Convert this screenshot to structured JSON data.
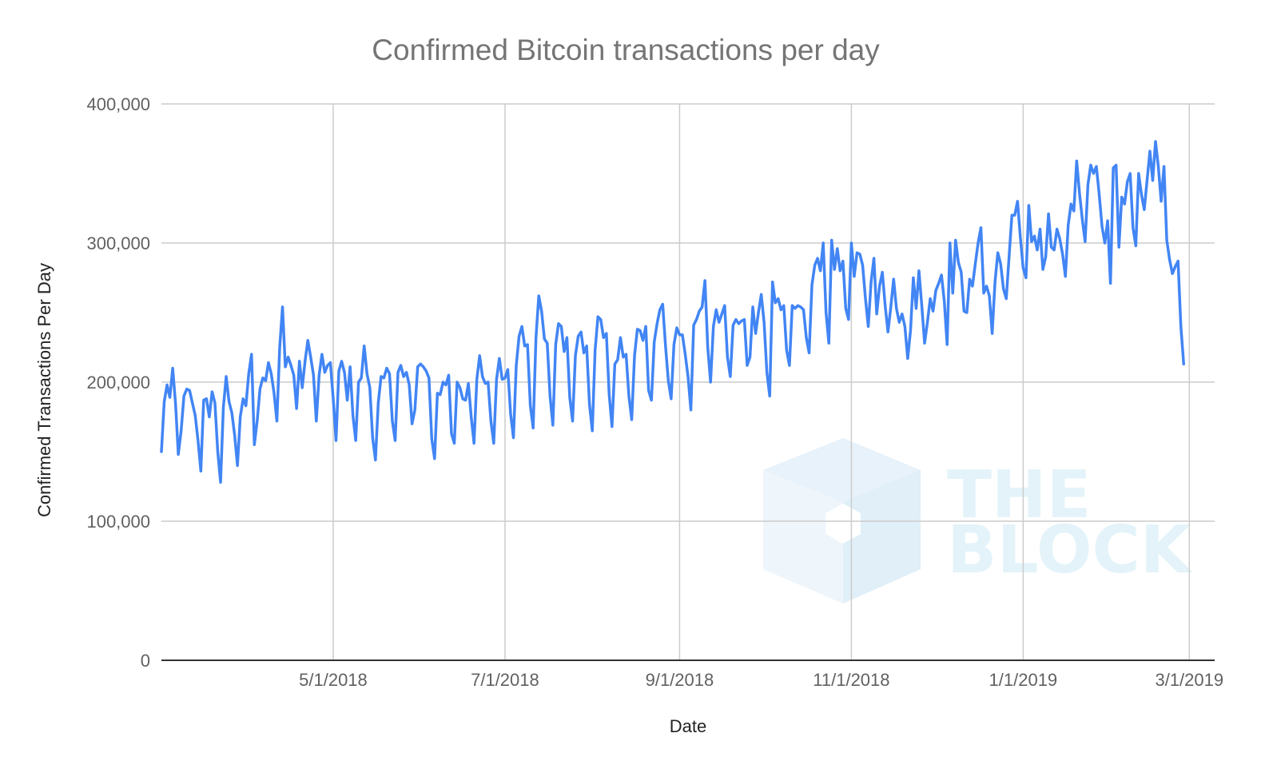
{
  "chart_data": {
    "type": "line",
    "title": "Confirmed Bitcoin transactions per day",
    "xlabel": "Date",
    "ylabel": "Confirmed Transactions Per Day",
    "x_start": "2018-03-01",
    "x_end": "2019-03-10",
    "ylim": [
      0,
      400000
    ],
    "y_ticks": [
      0,
      100000,
      200000,
      300000,
      400000
    ],
    "y_tick_labels": [
      "0",
      "100,000",
      "200,000",
      "300,000",
      "400,000"
    ],
    "x_ticks": [
      "2018-05-01",
      "2018-07-01",
      "2018-09-01",
      "2018-11-01",
      "2019-01-01",
      "2019-03-01"
    ],
    "x_tick_labels": [
      "5/1/2018",
      "7/1/2018",
      "9/1/2018",
      "11/1/2018",
      "1/1/2019",
      "3/1/2019"
    ],
    "grid": true,
    "series": [
      {
        "color": "#4285f4",
        "values": [
          150000,
          186000,
          198000,
          189000,
          210000,
          185000,
          148000,
          165000,
          190000,
          195000,
          194000,
          185000,
          176000,
          158000,
          136000,
          187000,
          188000,
          175000,
          193000,
          185000,
          150000,
          128000,
          182000,
          204000,
          186000,
          178000,
          162000,
          140000,
          175000,
          188000,
          183000,
          206000,
          220000,
          155000,
          172000,
          195000,
          203000,
          201000,
          214000,
          206000,
          192000,
          172000,
          225000,
          254000,
          211000,
          218000,
          212000,
          205000,
          181000,
          215000,
          196000,
          215000,
          230000,
          218000,
          205000,
          172000,
          205000,
          220000,
          207000,
          212000,
          214000,
          188000,
          158000,
          208000,
          215000,
          207000,
          187000,
          211000,
          176000,
          158000,
          200000,
          203000,
          226000,
          206000,
          196000,
          160000,
          144000,
          185000,
          204000,
          203000,
          210000,
          206000,
          172000,
          158000,
          207000,
          212000,
          204000,
          207000,
          198000,
          170000,
          180000,
          211000,
          213000,
          211000,
          208000,
          203000,
          159000,
          145000,
          192000,
          191000,
          200000,
          198000,
          205000,
          163000,
          156000,
          200000,
          196000,
          188000,
          187000,
          199000,
          175000,
          156000,
          202000,
          219000,
          204000,
          199000,
          200000,
          172000,
          156000,
          202000,
          217000,
          202000,
          203000,
          209000,
          177000,
          160000,
          212000,
          233000,
          240000,
          226000,
          227000,
          183000,
          167000,
          232000,
          262000,
          251000,
          231000,
          228000,
          190000,
          169000,
          227000,
          242000,
          240000,
          222000,
          232000,
          189000,
          172000,
          219000,
          233000,
          236000,
          221000,
          226000,
          184000,
          165000,
          223000,
          247000,
          245000,
          232000,
          235000,
          191000,
          168000,
          213000,
          216000,
          232000,
          218000,
          220000,
          190000,
          173000,
          219000,
          238000,
          237000,
          230000,
          240000,
          194000,
          187000,
          229000,
          242000,
          252000,
          256000,
          226000,
          201000,
          188000,
          227000,
          239000,
          234000,
          234000,
          220000,
          204000,
          180000,
          241000,
          245000,
          251000,
          254000,
          273000,
          225000,
          200000,
          240000,
          252000,
          243000,
          249000,
          255000,
          218000,
          204000,
          241000,
          245000,
          242000,
          244000,
          245000,
          212000,
          218000,
          254000,
          235000,
          250000,
          263000,
          243000,
          207000,
          190000,
          272000,
          257000,
          260000,
          252000,
          255000,
          223000,
          212000,
          255000,
          253000,
          255000,
          254000,
          252000,
          232000,
          221000,
          270000,
          284000,
          289000,
          280000,
          300000,
          250000,
          228000,
          302000,
          281000,
          296000,
          280000,
          287000,
          253000,
          245000,
          300000,
          276000,
          293000,
          292000,
          284000,
          260000,
          240000,
          272000,
          289000,
          249000,
          269000,
          279000,
          255000,
          236000,
          254000,
          274000,
          253000,
          243000,
          249000,
          240000,
          217000,
          237000,
          275000,
          253000,
          280000,
          255000,
          228000,
          243000,
          260000,
          251000,
          266000,
          271000,
          277000,
          258000,
          227000,
          300000,
          264000,
          302000,
          286000,
          279000,
          251000,
          250000,
          274000,
          269000,
          285000,
          300000,
          311000,
          264000,
          269000,
          262000,
          235000,
          272000,
          293000,
          285000,
          267000,
          260000,
          290000,
          320000,
          320000,
          330000,
          304000,
          282000,
          275000,
          327000,
          301000,
          305000,
          295000,
          310000,
          281000,
          290000,
          321000,
          297000,
          295000,
          310000,
          303000,
          292000,
          276000,
          313000,
          328000,
          323000,
          359000,
          336000,
          317000,
          301000,
          342000,
          356000,
          350000,
          355000,
          335000,
          312000,
          300000,
          316000,
          271000,
          354000,
          356000,
          297000,
          333000,
          328000,
          344000,
          350000,
          311000,
          298000,
          350000,
          335000,
          324000,
          345000,
          366000,
          345000,
          373000,
          355000,
          330000,
          355000,
          302000,
          288000,
          278000,
          283000,
          287000,
          240000,
          213000
        ]
      }
    ]
  },
  "watermark": {
    "line1": "THE",
    "line2": "BLOCK",
    "color": "#cdeaf5"
  }
}
